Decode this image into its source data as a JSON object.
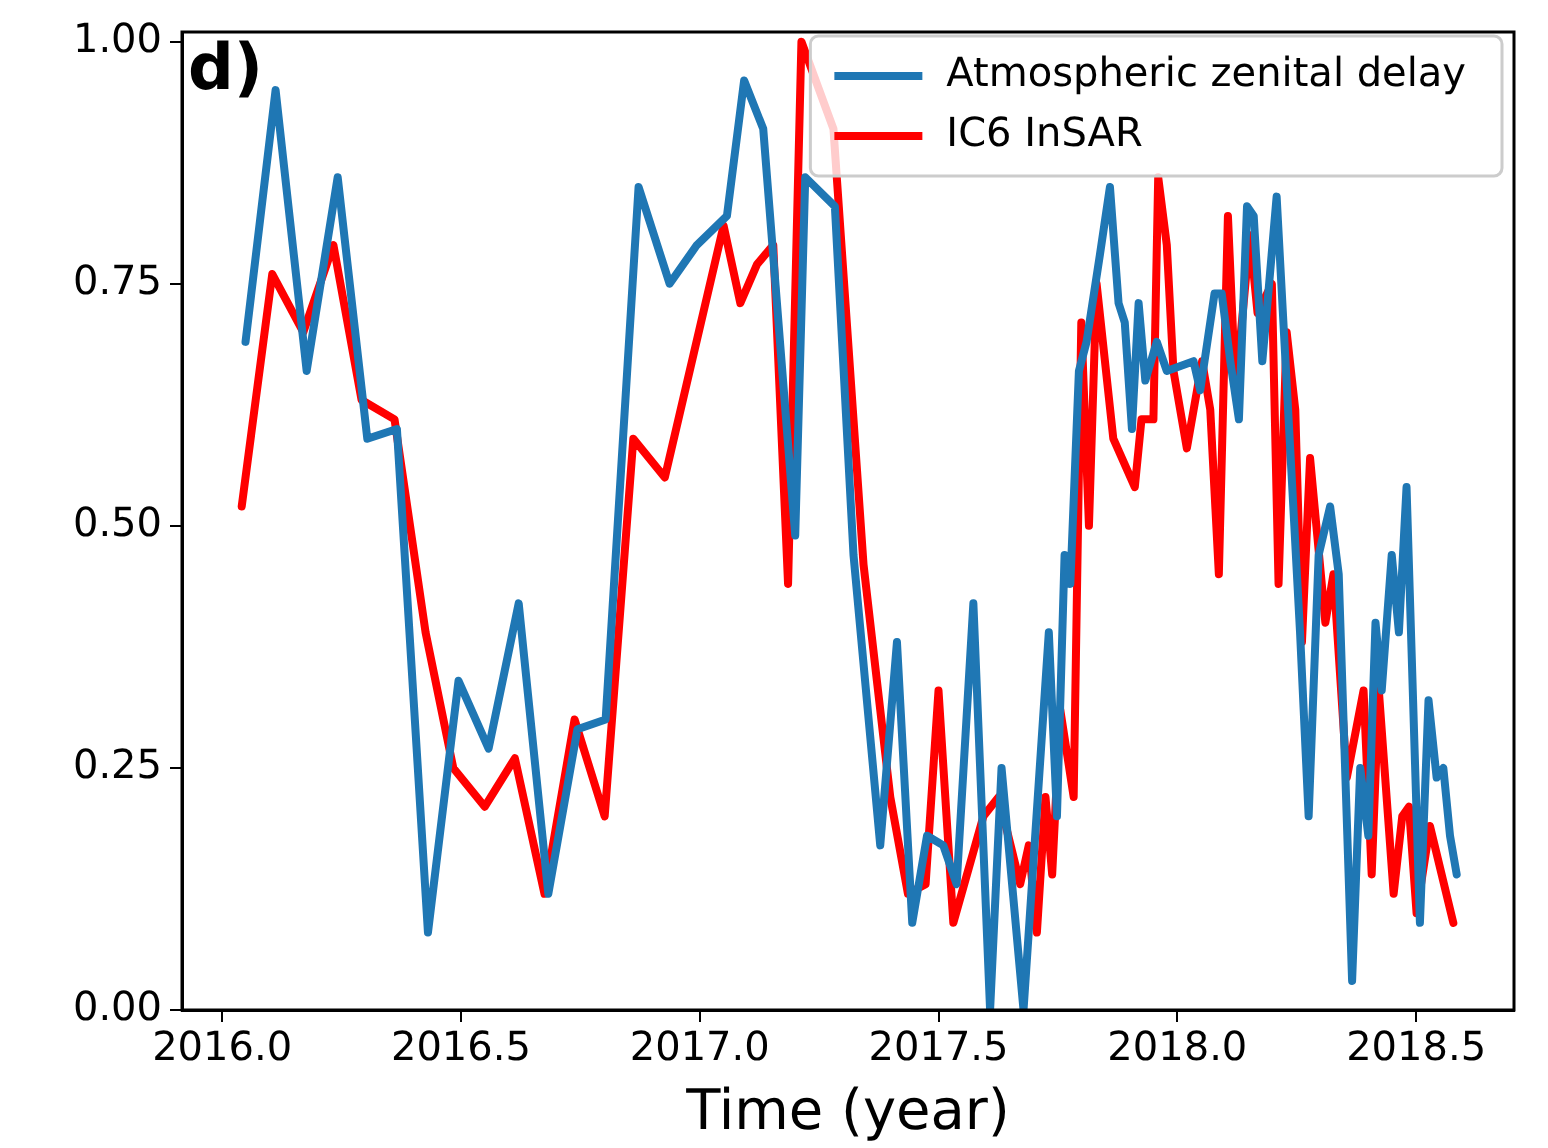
{
  "chart_data": {
    "type": "line",
    "xlabel": "Time (year)",
    "annotations": [
      "d)"
    ],
    "xlim": [
      2015.916,
      2018.705
    ],
    "ylim": [
      0,
      1.01
    ],
    "xticks": [
      {
        "value": 2016,
        "label": "2016.0"
      },
      {
        "value": 2016.5,
        "label": "2016.5"
      },
      {
        "value": 2017,
        "label": "2017.0"
      },
      {
        "value": 2017.5,
        "label": "2017.5"
      },
      {
        "value": 2018,
        "label": "2018.0"
      },
      {
        "value": 2018.5,
        "label": "2018.5"
      }
    ],
    "yticks": [
      {
        "value": 0,
        "label": "0.00"
      },
      {
        "value": 0.25,
        "label": "0.25"
      },
      {
        "value": 0.5,
        "label": "0.50"
      },
      {
        "value": 0.75,
        "label": "0.75"
      },
      {
        "value": 1,
        "label": "1.00"
      }
    ],
    "grid": false,
    "legend": "top right",
    "marker": "none",
    "line_style": "solid",
    "series": [
      {
        "name": "Atmospheric zenital delay",
        "color": "#1f77b4",
        "x": [
          2016.049,
          2016.112,
          2016.177,
          2016.242,
          2016.304,
          2016.366,
          2016.431,
          2016.495,
          2016.558,
          2016.621,
          2016.683,
          2016.744,
          2016.803,
          2016.872,
          2016.937,
          2016.994,
          2017.057,
          2017.093,
          2017.133,
          2017.2,
          2017.221,
          2017.283,
          2017.322,
          2017.378,
          2017.413,
          2017.445,
          2017.476,
          2017.51,
          2017.538,
          2017.573,
          2017.608,
          2017.632,
          2017.678,
          2017.731,
          2017.748,
          2017.764,
          2017.776,
          2017.794,
          2017.81,
          2017.838,
          2017.859,
          2017.877,
          2017.89,
          2017.905,
          2017.919,
          2017.933,
          2017.957,
          2017.978,
          2018.034,
          2018.048,
          2018.078,
          2018.093,
          2018.111,
          2018.129,
          2018.146,
          2018.16,
          2018.178,
          2018.187,
          2018.208,
          2018.257,
          2018.275,
          2018.296,
          2018.32,
          2018.338,
          2018.366,
          2018.383,
          2018.4,
          2018.415,
          2018.428,
          2018.449,
          2018.464,
          2018.48,
          2018.508,
          2018.526,
          2018.543,
          2018.557,
          2018.571,
          2018.585
        ],
        "values": [
          0.69,
          0.95,
          0.66,
          0.86,
          0.59,
          0.6,
          0.08,
          0.34,
          0.27,
          0.42,
          0.12,
          0.29,
          0.3,
          0.85,
          0.75,
          0.79,
          0.82,
          0.96,
          0.91,
          0.49,
          0.86,
          0.83,
          0.47,
          0.17,
          0.38,
          0.09,
          0.18,
          0.17,
          0.13,
          0.42,
          0,
          0.25,
          0,
          0.39,
          0.2,
          0.47,
          0.44,
          0.66,
          0.69,
          0.78,
          0.85,
          0.73,
          0.71,
          0.6,
          0.73,
          0.65,
          0.69,
          0.66,
          0.67,
          0.64,
          0.74,
          0.74,
          0.67,
          0.61,
          0.83,
          0.82,
          0.67,
          0.72,
          0.84,
          0.39,
          0.2,
          0.47,
          0.52,
          0.45,
          0.03,
          0.25,
          0.18,
          0.4,
          0.33,
          0.47,
          0.39,
          0.54,
          0.09,
          0.32,
          0.24,
          0.25,
          0.18,
          0.14
        ]
      },
      {
        "name": "IC6 InSAR",
        "color": "#ff0000",
        "x": [
          2016.041,
          2016.105,
          2016.17,
          2016.233,
          2016.292,
          2016.361,
          2016.426,
          2016.484,
          2016.55,
          2016.613,
          2016.675,
          2016.738,
          2016.801,
          2016.861,
          2016.927,
          2017.05,
          2017.085,
          2017.12,
          2017.154,
          2017.185,
          2017.213,
          2017.28,
          2017.343,
          2017.399,
          2017.436,
          2017.473,
          2017.5,
          2017.531,
          2017.594,
          2017.626,
          2017.671,
          2017.689,
          2017.706,
          2017.724,
          2017.738,
          2017.755,
          2017.783,
          2017.799,
          2017.815,
          2017.831,
          2017.866,
          2017.911,
          2017.925,
          2017.95,
          2017.96,
          2017.978,
          2017.992,
          2018.02,
          2018.052,
          2018.069,
          2018.087,
          2018.106,
          2018.122,
          2018.152,
          2018.168,
          2018.198,
          2018.212,
          2018.229,
          2018.247,
          2018.261,
          2018.278,
          2018.31,
          2018.327,
          2018.355,
          2018.39,
          2018.407,
          2018.422,
          2018.453,
          2018.471,
          2018.485,
          2018.501,
          2018.529,
          2018.578
        ],
        "values": [
          0.52,
          0.76,
          0.7,
          0.79,
          0.63,
          0.61,
          0.39,
          0.25,
          0.21,
          0.26,
          0.12,
          0.3,
          0.2,
          0.59,
          0.55,
          0.81,
          0.73,
          0.77,
          0.79,
          0.44,
          1,
          0.91,
          0.46,
          0.22,
          0.12,
          0.13,
          0.33,
          0.09,
          0.2,
          0.22,
          0.13,
          0.17,
          0.08,
          0.22,
          0.14,
          0.31,
          0.22,
          0.71,
          0.5,
          0.75,
          0.59,
          0.54,
          0.61,
          0.61,
          0.86,
          0.79,
          0.66,
          0.58,
          0.67,
          0.62,
          0.45,
          0.82,
          0.64,
          0.8,
          0.72,
          0.75,
          0.44,
          0.7,
          0.62,
          0.38,
          0.57,
          0.4,
          0.45,
          0.24,
          0.33,
          0.14,
          0.33,
          0.12,
          0.2,
          0.21,
          0.1,
          0.19,
          0.09
        ]
      }
    ]
  }
}
